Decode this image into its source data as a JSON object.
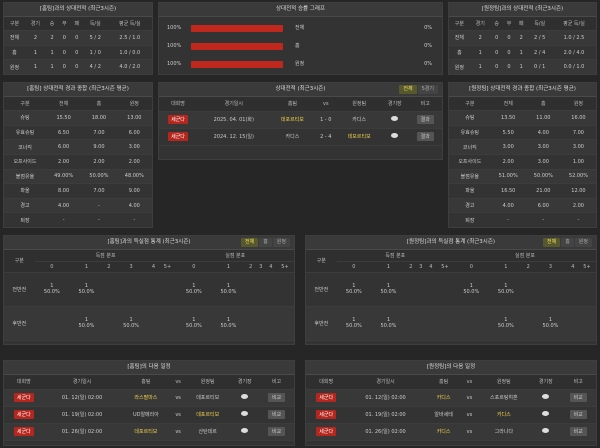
{
  "h2h_home": {
    "title": "[홈팀]과의 상대전적 (최근3시즌)",
    "header": [
      "구분",
      "경기",
      "승",
      "무",
      "패",
      "득/실",
      "평균 득/실"
    ],
    "rows": [
      [
        "전체",
        "2",
        "2",
        "0",
        "0",
        "5 / 2",
        "2.5 / 1.0"
      ],
      [
        "홈",
        "1",
        "1",
        "0",
        "0",
        "1 / 0",
        "1.0 / 0.0"
      ],
      [
        "원정",
        "1",
        "1",
        "0",
        "0",
        "4 / 2",
        "4.0 / 2.0"
      ]
    ]
  },
  "h2h_graph": {
    "title": "상대전적 승률 그래프",
    "rows": [
      {
        "win_rate": 100,
        "win_label": "100%",
        "label": "전체",
        "loss_label": "0%"
      },
      {
        "win_rate": 100,
        "win_label": "100%",
        "label": "홈",
        "loss_label": "0%"
      },
      {
        "win_rate": 100,
        "win_label": "100%",
        "label": "원정",
        "loss_label": "0%"
      }
    ]
  },
  "h2h_away": {
    "title": "[원정팀]과의 상대전적 (최근3시즌)",
    "header": [
      "구분",
      "경기",
      "승",
      "무",
      "패",
      "득/실",
      "평균 득/실"
    ],
    "rows": [
      [
        "전체",
        "2",
        "0",
        "0",
        "2",
        "2 / 5",
        "1.0 / 2.5"
      ],
      [
        "홈",
        "1",
        "0",
        "0",
        "1",
        "2 / 4",
        "2.0 / 4.0"
      ],
      [
        "원정",
        "1",
        "0",
        "0",
        "1",
        "0 / 1",
        "0.0 / 1.0"
      ]
    ]
  },
  "home_avg": {
    "title": "[홈팀] 상대전적 경과 종합 (최근3시즌 평균)",
    "header": [
      "구분",
      "전체",
      "홈",
      "원정"
    ],
    "rows": [
      [
        "슈팅",
        "15.50",
        "18.00",
        "13.00"
      ],
      [
        "유효슈팅",
        "6.50",
        "7.00",
        "6.00"
      ],
      [
        "코너킥",
        "6.00",
        "9.00",
        "3.00"
      ],
      [
        "오프사이드",
        "2.00",
        "2.00",
        "2.00"
      ],
      [
        "볼점유율",
        "49.00%",
        "50.00%",
        "48.00%"
      ],
      [
        "파울",
        "8.00",
        "7.00",
        "9.00"
      ],
      [
        "경고",
        "4.00",
        "-",
        "4.00"
      ],
      [
        "퇴장",
        "-",
        "-",
        "-"
      ]
    ]
  },
  "match_list": {
    "title": "상대전적 (최근3시즌)",
    "tabs": [
      "전체",
      "5경기"
    ],
    "header": [
      "대회명",
      "경기일시",
      "홈팀",
      "vs",
      "원정팀",
      "경기장",
      "비고"
    ],
    "rows": [
      [
        "세군다",
        "2025. 04. 01(화)",
        "데포르티보",
        "1 - 0",
        "카디스",
        "결과"
      ],
      [
        "세군다",
        "2024. 12. 15(일)",
        "카디스",
        "2 - 4",
        "데포르티보",
        "결과"
      ]
    ]
  },
  "away_avg": {
    "title": "[원정팀] 상대전적 경과 종합 (최근3시즌 평균)",
    "header": [
      "구분",
      "전체",
      "홈",
      "원정"
    ],
    "rows": [
      [
        "슈팅",
        "13.50",
        "11.00",
        "16.00"
      ],
      [
        "유효슈팅",
        "5.50",
        "4.00",
        "7.00"
      ],
      [
        "코너킥",
        "3.00",
        "3.00",
        "3.00"
      ],
      [
        "오프사이드",
        "2.00",
        "3.00",
        "1.00"
      ],
      [
        "볼점유율",
        "51.00%",
        "50.00%",
        "52.00%"
      ],
      [
        "파울",
        "16.50",
        "21.00",
        "12.00"
      ],
      [
        "경고",
        "4.00",
        "6.00",
        "2.00"
      ],
      [
        "퇴장",
        "-",
        "-",
        "-"
      ]
    ]
  },
  "home_goals": {
    "title": "[홈팀]과의 득실점 통계 (최근3시즌)",
    "tabs": [
      "전체",
      "홈",
      "원정"
    ],
    "label_col": "구분",
    "groups": [
      "득점 분포",
      "실점 분포"
    ],
    "buckets": [
      "0",
      "1",
      "2",
      "3",
      "4",
      "5+"
    ],
    "rows": [
      {
        "label": "전반전",
        "cells": [
          [
            "1",
            "50.0%"
          ],
          [
            "1",
            "50.0%"
          ],
          null,
          null,
          null,
          null,
          [
            "1",
            "50.0%"
          ],
          [
            "1",
            "50.0%"
          ],
          null,
          null,
          null,
          null
        ]
      },
      {
        "label": "후반전",
        "cells": [
          null,
          [
            "1",
            "50.0%"
          ],
          null,
          [
            "1",
            "50.0%"
          ],
          null,
          null,
          [
            "1",
            "50.0%"
          ],
          [
            "1",
            "50.0%"
          ],
          null,
          null,
          null,
          null
        ]
      }
    ]
  },
  "away_goals": {
    "title": "[원정팀]과의 득실점 통계 (최근3시즌)",
    "tabs": [
      "전체",
      "홈",
      "원정"
    ],
    "label_col": "구분",
    "groups": [
      "득점 분포",
      "실점 분포"
    ],
    "buckets": [
      "0",
      "1",
      "2",
      "3",
      "4",
      "5+"
    ],
    "rows": [
      {
        "label": "전반전",
        "cells": [
          [
            "1",
            "50.0%"
          ],
          [
            "1",
            "50.0%"
          ],
          null,
          null,
          null,
          null,
          [
            "1",
            "50.0%"
          ],
          [
            "1",
            "50.0%"
          ],
          null,
          null,
          null,
          null
        ]
      },
      {
        "label": "후반전",
        "cells": [
          [
            "1",
            "50.0%"
          ],
          [
            "1",
            "50.0%"
          ],
          null,
          null,
          null,
          null,
          null,
          [
            "1",
            "50.0%"
          ],
          null,
          [
            "1",
            "50.0%"
          ],
          null,
          null
        ]
      }
    ]
  },
  "home_next": {
    "title": "[홈팀]의 다음 일정",
    "header": [
      "대회명",
      "경기일시",
      "홈팀",
      "vs",
      "원정팀",
      "경기장",
      "비고"
    ],
    "rows": [
      [
        "세군다",
        "01. 12(일) 02:00",
        "라스팔마스",
        "vs",
        "데포르티보",
        "비교"
      ],
      [
        "세군다",
        "01. 19(일) 02:00",
        "UD알메리아",
        "vs",
        "데포르티보",
        "비교"
      ],
      [
        "세군다",
        "01. 26(일) 02:00",
        "데포르티보",
        "vs",
        "산탄데르",
        "비교"
      ]
    ]
  },
  "away_next": {
    "title": "[원정팀]의 다음 일정",
    "header": [
      "대회명",
      "경기일시",
      "홈팀",
      "vs",
      "원정팀",
      "경기장",
      "비고"
    ],
    "rows": [
      [
        "세군다",
        "01. 12(일) 02:00",
        "카디스",
        "vs",
        "스포르팅히혼",
        "비교"
      ],
      [
        "세군다",
        "01. 19(일) 02:00",
        "알바세테",
        "vs",
        "카디스",
        "비교"
      ],
      [
        "세군다",
        "01. 26(일) 02:00",
        "카디스",
        "vs",
        "그라나다",
        "비교"
      ]
    ]
  }
}
